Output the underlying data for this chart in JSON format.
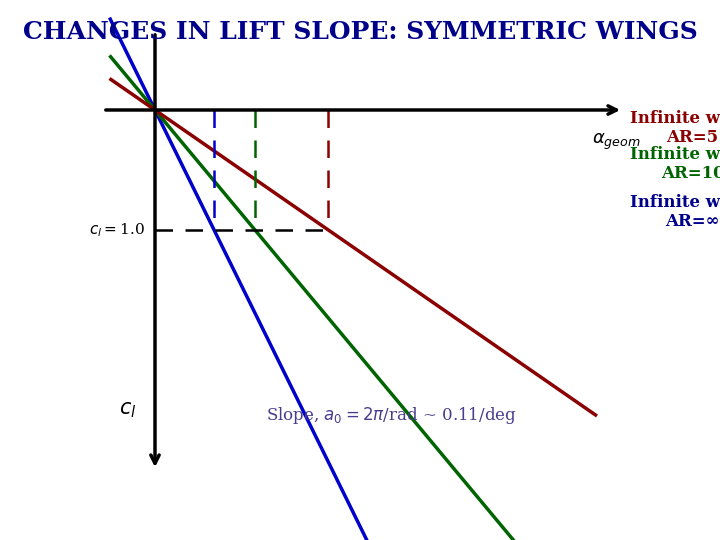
{
  "title": "CHANGES IN LIFT SLOPE: SYMMETRIC WINGS",
  "title_color": "#00008B",
  "title_fontsize": 18,
  "background_color": "#ffffff",
  "lines": [
    {
      "label_line1": "Infinite wing:",
      "label_line2": "AR=∞",
      "color": "#0000cc",
      "slope": 2.2,
      "label_color": "#00008B"
    },
    {
      "label_line1": "Infinite wing:",
      "label_line2": "AR=10",
      "color": "#006400",
      "slope": 1.3,
      "label_color": "#006400"
    },
    {
      "label_line1": "Infinite wing:",
      "label_line2": "AR=5",
      "color": "#8B0000",
      "slope": 0.75,
      "label_color": "#8B0000"
    }
  ],
  "cl_ref": 1.0,
  "slope_text_line1": "Slope, a",
  "slope_text_line2": " = 2π/rad ~ 0.11/deg",
  "slope_text_color": "#483D8B",
  "dashed_line_color": "black",
  "x_plot_start": 0.0,
  "x_plot_end": 3.5,
  "y_axis_top": 3.5,
  "y_axis_bottom": -0.8,
  "x_axis_left": -0.5,
  "x_axis_right": 3.5
}
